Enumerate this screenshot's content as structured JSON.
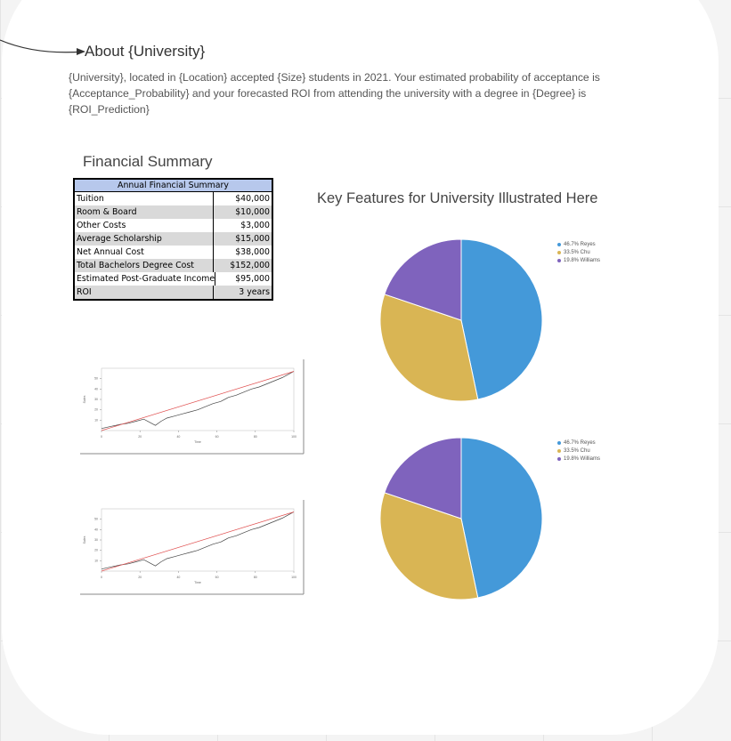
{
  "about": {
    "title": "About {University}",
    "description": "{University}, located in {Location} accepted {Size} students in 2021. Your estimated probability of acceptance is {Acceptance_Probability} and your forecasted ROI from attending the university with a degree in {Degree} is {ROI_Prediction}"
  },
  "financial_summary": {
    "title": "Financial Summary",
    "table_header": "Annual Financial Summary",
    "rows": [
      {
        "label": "Tuition",
        "value": "$40,000"
      },
      {
        "label": "Room & Board",
        "value": "$10,000"
      },
      {
        "label": "Other Costs",
        "value": "$3,000"
      },
      {
        "label": "Average Scholarship",
        "value": "$15,000"
      },
      {
        "label": "Net Annual Cost",
        "value": "$38,000"
      },
      {
        "label": "Total Bachelors Degree Cost",
        "value": "$152,000"
      },
      {
        "label": "Estimated Post-Graduate Income",
        "value": "$95,000"
      },
      {
        "label": "ROI",
        "value": "3 years"
      }
    ]
  },
  "key_features": {
    "title": "Key Features for University Illustrated Here"
  },
  "colors": {
    "reyes": "#4499d9",
    "chu": "#d9b554",
    "williams": "#7f63bd",
    "trend": "#e05050",
    "series": "#444444"
  },
  "chart_data": [
    {
      "type": "pie",
      "slices": [
        {
          "label": "46.7% Reyes",
          "value": 46.7
        },
        {
          "label": "33.5% Chu",
          "value": 33.5
        },
        {
          "label": "19.8% Williams",
          "value": 19.8
        }
      ],
      "legend": "right"
    },
    {
      "type": "pie",
      "slices": [
        {
          "label": "46.7% Reyes",
          "value": 46.7
        },
        {
          "label": "33.5% Chu",
          "value": 33.5
        },
        {
          "label": "19.8% Williams",
          "value": 19.8
        }
      ],
      "legend": "right"
    },
    {
      "type": "line",
      "xlim": [
        0,
        100
      ],
      "ylim": [
        0,
        60
      ],
      "x_ticks": [
        "0",
        "20",
        "40",
        "60",
        "80",
        "100"
      ],
      "y_ticks": [
        "10",
        "20",
        "30",
        "40",
        "50"
      ],
      "xlabel": "Time",
      "ylabel": "Sales",
      "series": [
        {
          "x": [
            0,
            5,
            10,
            14,
            18,
            22,
            25,
            28,
            31,
            34,
            38,
            42,
            46,
            50,
            54,
            58,
            62,
            66,
            70,
            74,
            78,
            82,
            86,
            90,
            94,
            98,
            100
          ],
          "y": [
            2,
            4,
            6,
            7,
            9,
            11,
            8,
            5,
            9,
            12,
            14,
            16,
            18,
            20,
            23,
            26,
            28,
            32,
            34,
            37,
            40,
            42,
            45,
            48,
            51,
            55,
            57
          ]
        },
        {
          "x": [
            0,
            100
          ],
          "y": [
            0,
            57
          ]
        }
      ]
    },
    {
      "type": "line",
      "xlim": [
        0,
        100
      ],
      "ylim": [
        0,
        60
      ],
      "x_ticks": [
        "0",
        "20",
        "40",
        "60",
        "80",
        "100"
      ],
      "y_ticks": [
        "10",
        "20",
        "30",
        "40",
        "50"
      ],
      "xlabel": "Time",
      "ylabel": "Sales",
      "series": [
        {
          "x": [
            0,
            5,
            10,
            14,
            18,
            22,
            25,
            28,
            31,
            34,
            38,
            42,
            46,
            50,
            54,
            58,
            62,
            66,
            70,
            74,
            78,
            82,
            86,
            90,
            94,
            98,
            100
          ],
          "y": [
            2,
            4,
            6,
            7,
            9,
            11,
            8,
            5,
            9,
            12,
            14,
            16,
            18,
            20,
            23,
            26,
            28,
            32,
            34,
            37,
            40,
            42,
            45,
            48,
            51,
            55,
            57
          ]
        },
        {
          "x": [
            0,
            100
          ],
          "y": [
            0,
            57
          ]
        }
      ]
    }
  ]
}
